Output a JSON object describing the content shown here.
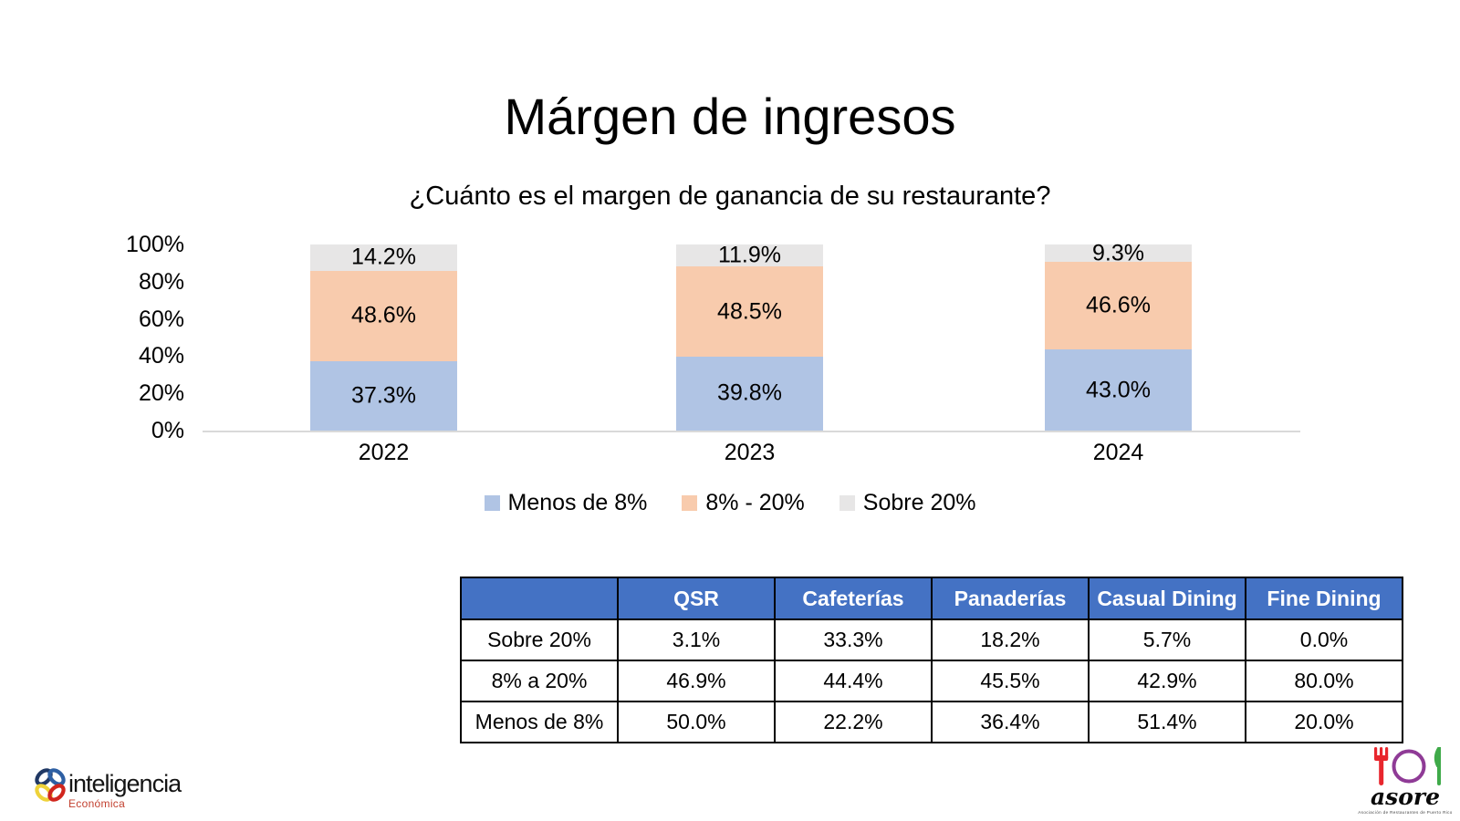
{
  "chart_data": [
    {
      "type": "bar",
      "subtype": "stacked-100-percent",
      "title": "Márgen de ingresos",
      "subtitle": "¿Cuánto es el margen de ganancia de su restaurante?",
      "categories": [
        "2022",
        "2023",
        "2024"
      ],
      "series": [
        {
          "name": "Menos de 8%",
          "color": "#b0c4e4",
          "values": [
            37.3,
            39.8,
            43.0
          ],
          "labels": [
            "37.3%",
            "39.8%",
            "43.0%"
          ]
        },
        {
          "name": "8% - 20%",
          "color": "#f8cbad",
          "values": [
            48.6,
            48.5,
            46.6
          ],
          "labels": [
            "48.6%",
            "48.5%",
            "46.6%"
          ]
        },
        {
          "name": "Sobre 20%",
          "color": "#e7e6e6",
          "values": [
            14.2,
            11.9,
            9.3
          ],
          "labels": [
            "14.2%",
            "11.9%",
            "9.3%"
          ]
        }
      ],
      "y_axis": {
        "ticks": [
          "100%",
          "80%",
          "60%",
          "40%",
          "20%",
          "0%"
        ],
        "min": 0,
        "max": 100,
        "unit": "%"
      },
      "xlabel": "",
      "ylabel": "",
      "grid": false,
      "legend_position": "bottom",
      "axis_line_color": "#d9d9d9"
    },
    {
      "type": "table",
      "columns": [
        "",
        "QSR",
        "Cafeterías",
        "Panaderías",
        "Casual Dining",
        "Fine Dining"
      ],
      "rows": [
        {
          "label": "Sobre 20%",
          "values": [
            "3.1%",
            "33.3%",
            "18.2%",
            "5.7%",
            "0.0%"
          ]
        },
        {
          "label": "8% a 20%",
          "values": [
            "46.9%",
            "44.4%",
            "45.5%",
            "42.9%",
            "80.0%"
          ]
        },
        {
          "label": "Menos de 8%",
          "values": [
            "50.0%",
            "22.2%",
            "36.4%",
            "51.4%",
            "20.0%"
          ]
        }
      ],
      "header_bg": "#4472c4",
      "header_text_color": "#ffffff",
      "border_color": "#000000"
    }
  ],
  "footer": {
    "left_logo": {
      "name": "inteligencia",
      "subname": "Económica",
      "clover_colors": [
        "#203864",
        "#2e5fa3",
        "#eed23a",
        "#d1261d"
      ]
    },
    "right_logo": {
      "name": "asore",
      "tagline": "Asociación de Restaurantes de Puerto Rico",
      "fork_color": "#e8262d",
      "plate_color": "#8f3b96",
      "knife_color": "#3faa49"
    }
  }
}
